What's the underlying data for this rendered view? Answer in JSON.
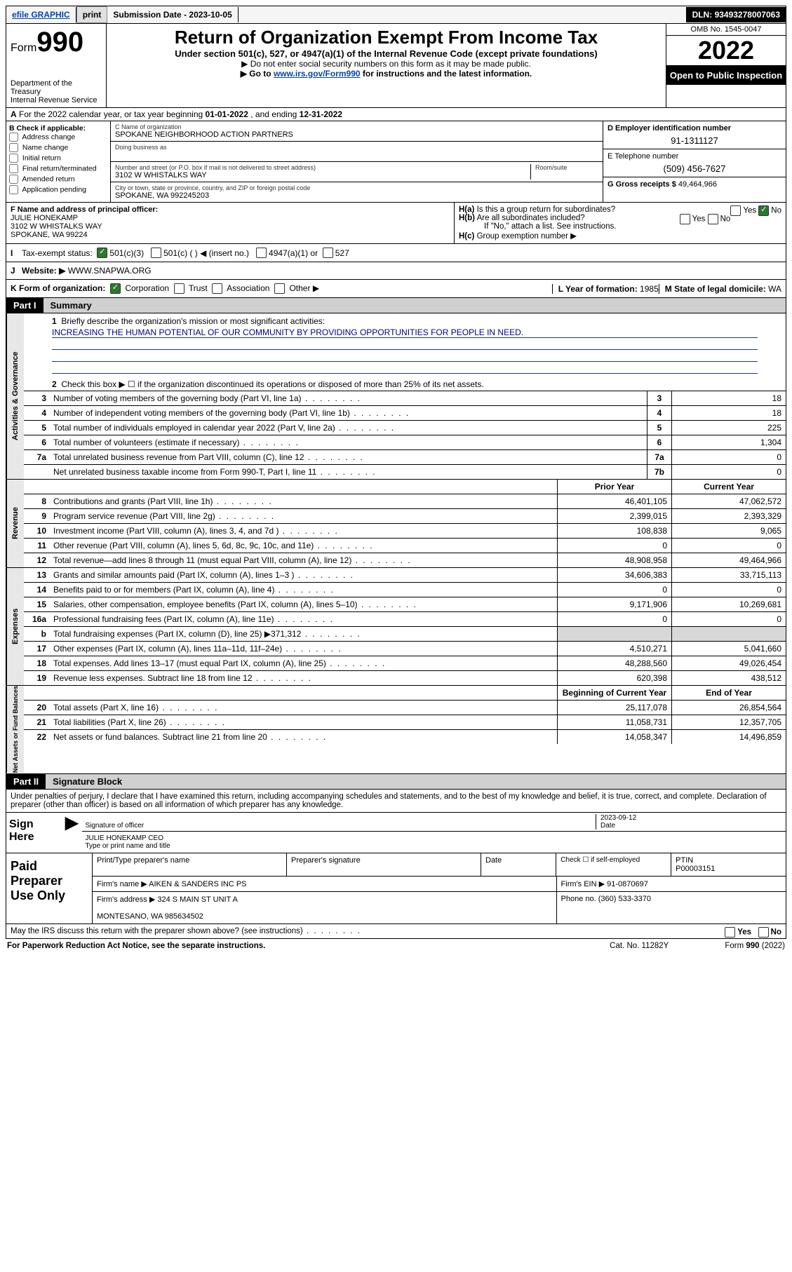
{
  "topbar": {
    "efile": "efile GRAPHIC",
    "print": "print",
    "subdate_label": "Submission Date - ",
    "subdate": "2023-10-05",
    "dln_label": "DLN: ",
    "dln": "93493278007063"
  },
  "header": {
    "form_label": "Form",
    "form_num": "990",
    "dept": "Department of the Treasury",
    "irs": "Internal Revenue Service",
    "title": "Return of Organization Exempt From Income Tax",
    "sub1": "Under section 501(c), 527, or 4947(a)(1) of the Internal Revenue Code (except private foundations)",
    "sub2": "Do not enter social security numbers on this form as it may be made public.",
    "sub3_pre": "Go to ",
    "sub3_link": "www.irs.gov/Form990",
    "sub3_post": " for instructions and the latest information.",
    "omb": "OMB No. 1545-0047",
    "year": "2022",
    "open": "Open to Public Inspection"
  },
  "line_a": {
    "pre": "For the 2022 calendar year, or tax year beginning ",
    "begin": "01-01-2022",
    "mid": " , and ending ",
    "end": "12-31-2022"
  },
  "box_b": {
    "label": "B Check if applicable:",
    "opts": [
      "Address change",
      "Name change",
      "Initial return",
      "Final return/terminated",
      "Amended return",
      "Application pending"
    ]
  },
  "box_c": {
    "name_label": "C Name of organization",
    "name": "SPOKANE NEIGHBORHOOD ACTION PARTNERS",
    "dba_label": "Doing business as",
    "addr_label": "Number and street (or P.O. box if mail is not delivered to street address)",
    "room_label": "Room/suite",
    "addr": "3102 W WHISTALKS WAY",
    "city_label": "City or town, state or province, country, and ZIP or foreign postal code",
    "city": "SPOKANE, WA  992245203"
  },
  "box_d": {
    "label": "D Employer identification number",
    "val": "91-1311127"
  },
  "box_e": {
    "label": "E Telephone number",
    "val": "(509) 456-7627"
  },
  "box_g": {
    "label": "G Gross receipts $ ",
    "val": "49,464,966"
  },
  "box_f": {
    "label": "F Name and address of principal officer:",
    "name": "JULIE HONEKAMP",
    "addr1": "3102 W WHISTALKS WAY",
    "addr2": "SPOKANE, WA  99224"
  },
  "box_h": {
    "a": "Is this a group return for subordinates?",
    "b": "Are all subordinates included?",
    "note": "If \"No,\" attach a list. See instructions.",
    "c": "Group exemption number ▶",
    "yes": "Yes",
    "no": "No"
  },
  "row_i": {
    "label": "Tax-exempt status:",
    "c3": "501(c)(3)",
    "c": "501(c) (   ) ◀ (insert no.)",
    "a1": "4947(a)(1) or",
    "527": "527"
  },
  "row_j": {
    "label": "Website: ▶",
    "val": "WWW.SNAPWA.ORG"
  },
  "row_k": {
    "label": "K Form of organization:",
    "corp": "Corporation",
    "trust": "Trust",
    "assoc": "Association",
    "other": "Other ▶",
    "l_label": "L Year of formation: ",
    "l_val": "1985",
    "m_label": "M State of legal domicile: ",
    "m_val": "WA"
  },
  "part1": {
    "hdr": "Part I",
    "title": "Summary"
  },
  "mission": {
    "label": "Briefly describe the organization's mission or most significant activities:",
    "text": "INCREASING THE HUMAN POTENTIAL OF OUR COMMUNITY BY PROVIDING OPPORTUNITIES FOR PEOPLE IN NEED."
  },
  "line2": "Check this box ▶ ☐  if the organization discontinued its operations or disposed of more than 25% of its net assets.",
  "vtabs": {
    "gov": "Activities & Governance",
    "rev": "Revenue",
    "exp": "Expenses",
    "net": "Net Assets or Fund Balances"
  },
  "gov_rows": [
    {
      "n": "3",
      "label": "Number of voting members of the governing body (Part VI, line 1a)",
      "box": "3",
      "val": "18"
    },
    {
      "n": "4",
      "label": "Number of independent voting members of the governing body (Part VI, line 1b)",
      "box": "4",
      "val": "18"
    },
    {
      "n": "5",
      "label": "Total number of individuals employed in calendar year 2022 (Part V, line 2a)",
      "box": "5",
      "val": "225"
    },
    {
      "n": "6",
      "label": "Total number of volunteers (estimate if necessary)",
      "box": "6",
      "val": "1,304"
    },
    {
      "n": "7a",
      "label": "Total unrelated business revenue from Part VIII, column (C), line 12",
      "box": "7a",
      "val": "0"
    },
    {
      "n": "",
      "label": "Net unrelated business taxable income from Form 990-T, Part I, line 11",
      "box": "7b",
      "val": "0"
    }
  ],
  "col_hdr": {
    "prior": "Prior Year",
    "current": "Current Year",
    "boy": "Beginning of Current Year",
    "eoy": "End of Year"
  },
  "rev_rows": [
    {
      "n": "8",
      "label": "Contributions and grants (Part VIII, line 1h)",
      "p": "46,401,105",
      "c": "47,062,572"
    },
    {
      "n": "9",
      "label": "Program service revenue (Part VIII, line 2g)",
      "p": "2,399,015",
      "c": "2,393,329"
    },
    {
      "n": "10",
      "label": "Investment income (Part VIII, column (A), lines 3, 4, and 7d )",
      "p": "108,838",
      "c": "9,065"
    },
    {
      "n": "11",
      "label": "Other revenue (Part VIII, column (A), lines 5, 6d, 8c, 9c, 10c, and 11e)",
      "p": "0",
      "c": "0"
    },
    {
      "n": "12",
      "label": "Total revenue—add lines 8 through 11 (must equal Part VIII, column (A), line 12)",
      "p": "48,908,958",
      "c": "49,464,966"
    }
  ],
  "exp_rows": [
    {
      "n": "13",
      "label": "Grants and similar amounts paid (Part IX, column (A), lines 1–3 )",
      "p": "34,606,383",
      "c": "33,715,113"
    },
    {
      "n": "14",
      "label": "Benefits paid to or for members (Part IX, column (A), line 4)",
      "p": "0",
      "c": "0"
    },
    {
      "n": "15",
      "label": "Salaries, other compensation, employee benefits (Part IX, column (A), lines 5–10)",
      "p": "9,171,906",
      "c": "10,269,681"
    },
    {
      "n": "16a",
      "label": "Professional fundraising fees (Part IX, column (A), line 11e)",
      "p": "0",
      "c": "0"
    },
    {
      "n": "b",
      "label": "Total fundraising expenses (Part IX, column (D), line 25) ▶371,312",
      "p": "",
      "c": "",
      "shade": true
    },
    {
      "n": "17",
      "label": "Other expenses (Part IX, column (A), lines 11a–11d, 11f–24e)",
      "p": "4,510,271",
      "c": "5,041,660"
    },
    {
      "n": "18",
      "label": "Total expenses. Add lines 13–17 (must equal Part IX, column (A), line 25)",
      "p": "48,288,560",
      "c": "49,026,454"
    },
    {
      "n": "19",
      "label": "Revenue less expenses. Subtract line 18 from line 12",
      "p": "620,398",
      "c": "438,512"
    }
  ],
  "net_rows": [
    {
      "n": "20",
      "label": "Total assets (Part X, line 16)",
      "p": "25,117,078",
      "c": "26,854,564"
    },
    {
      "n": "21",
      "label": "Total liabilities (Part X, line 26)",
      "p": "11,058,731",
      "c": "12,357,705"
    },
    {
      "n": "22",
      "label": "Net assets or fund balances. Subtract line 21 from line 20",
      "p": "14,058,347",
      "c": "14,496,859"
    }
  ],
  "part2": {
    "hdr": "Part II",
    "title": "Signature Block"
  },
  "sig": {
    "decl": "Under penalties of perjury, I declare that I have examined this return, including accompanying schedules and statements, and to the best of my knowledge and belief, it is true, correct, and complete. Declaration of preparer (other than officer) is based on all information of which preparer has any knowledge.",
    "sign_here": "Sign Here",
    "sig_officer": "Signature of officer",
    "date_label": "Date",
    "date_val": "2023-09-12",
    "name": "JULIE HONEKAMP CEO",
    "name_label": "Type or print name and title"
  },
  "paid": {
    "title": "Paid Preparer Use Only",
    "h1": "Print/Type preparer's name",
    "h2": "Preparer's signature",
    "h3": "Date",
    "h4_a": "Check ☐ if self-employed",
    "h4_b": "PTIN",
    "ptin": "P00003151",
    "firm_name_label": "Firm's name    ▶",
    "firm_name": "AIKEN & SANDERS INC PS",
    "firm_ein_label": "Firm's EIN ▶",
    "firm_ein": "91-0870697",
    "firm_addr_label": "Firm's address ▶",
    "firm_addr1": "324 S MAIN ST UNIT A",
    "firm_addr2": "MONTESANO, WA  985634502",
    "phone_label": "Phone no. ",
    "phone": "(360) 533-3370"
  },
  "discuss": {
    "q": "May the IRS discuss this return with the preparer shown above? (see instructions)",
    "yes": "Yes",
    "no": "No"
  },
  "footer": {
    "left": "For Paperwork Reduction Act Notice, see the separate instructions.",
    "mid": "Cat. No. 11282Y",
    "right": "Form 990 (2022)"
  },
  "colors": {
    "link": "#0645ad",
    "mission_line": "#1a3a8a",
    "checked": "#2a7a2a",
    "shade": "#d8d8d8",
    "vtab_bg": "#e8e8e8"
  }
}
